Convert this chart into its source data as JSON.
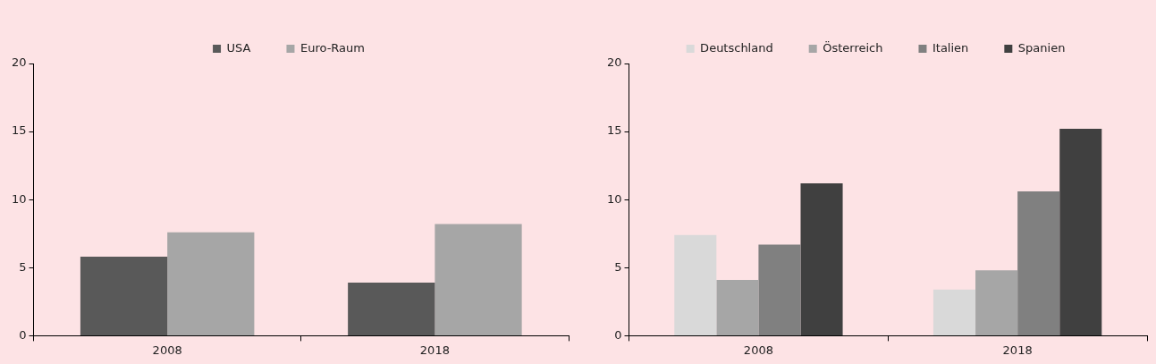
{
  "chart_data": [
    {
      "type": "bar",
      "categories": [
        "2008",
        "2018"
      ],
      "series": [
        {
          "name": "USA",
          "color": "#595959",
          "values": [
            5.8,
            3.9
          ]
        },
        {
          "name": "Euro-Raum",
          "color": "#a6a6a6",
          "values": [
            7.6,
            8.2
          ]
        }
      ],
      "ylim": [
        0,
        20
      ],
      "yticks": [
        0,
        5,
        10,
        15,
        20
      ],
      "grid": false,
      "legend": "top"
    },
    {
      "type": "bar",
      "categories": [
        "2008",
        "2018"
      ],
      "series": [
        {
          "name": "Deutschland",
          "color": "#d9d9d9",
          "values": [
            7.4,
            3.4
          ]
        },
        {
          "name": "Österreich",
          "color": "#a6a6a6",
          "values": [
            4.1,
            4.8
          ]
        },
        {
          "name": "Italien",
          "color": "#808080",
          "values": [
            6.7,
            10.6
          ]
        },
        {
          "name": "Spanien",
          "color": "#404040",
          "values": [
            11.2,
            15.2
          ]
        }
      ],
      "ylim": [
        0,
        20
      ],
      "yticks": [
        0,
        5,
        10,
        15,
        20
      ],
      "grid": false,
      "legend": "top"
    }
  ]
}
